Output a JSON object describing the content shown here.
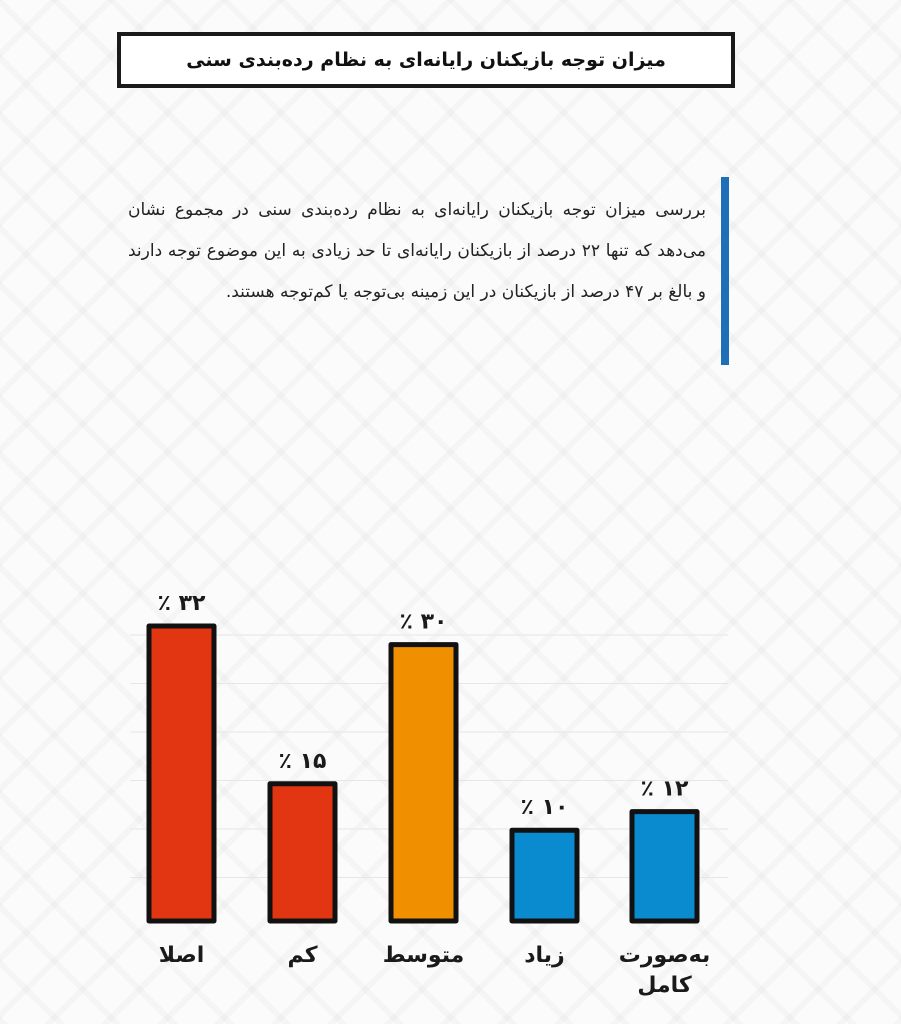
{
  "title": "میزان توجه بازیکنان رایانه‌ای به نظام رده‌بندی سنی",
  "description": "بررسی میزان توجه بازیکنان رایانه‌ای به نظام رده‌بندی سنی در مجموع نشان می‌دهد که تنها ۲۲ درصد از بازیکنان رایانه‌ای تا حد زیادی به این موضوع توجه دارند و بالغ بر ۴۷ درصد از بازیکنان در این زمینه بی‌توجه یا کم‌توجه هستند.",
  "chart_data": {
    "type": "bar",
    "categories": [
      "اصلا",
      "کم",
      "متوسط",
      "زیاد",
      "به‌صورت کامل"
    ],
    "category_lines": [
      [
        "اصلا"
      ],
      [
        "کم"
      ],
      [
        "متوسط"
      ],
      [
        "زیاد"
      ],
      [
        "به‌صورت",
        "کامل"
      ]
    ],
    "values": [
      32,
      15,
      30,
      10,
      12
    ],
    "data_labels": [
      "٪ ۳۲",
      "٪ ۱۵",
      "٪ ۳۰",
      "٪ ۱۰",
      "٪ ۱۲"
    ],
    "colors": [
      "#e23512",
      "#e23512",
      "#f09000",
      "#0a8bd0",
      "#0a8bd0"
    ],
    "unit": "%",
    "grid": true,
    "ylim": [
      0,
      32
    ]
  }
}
